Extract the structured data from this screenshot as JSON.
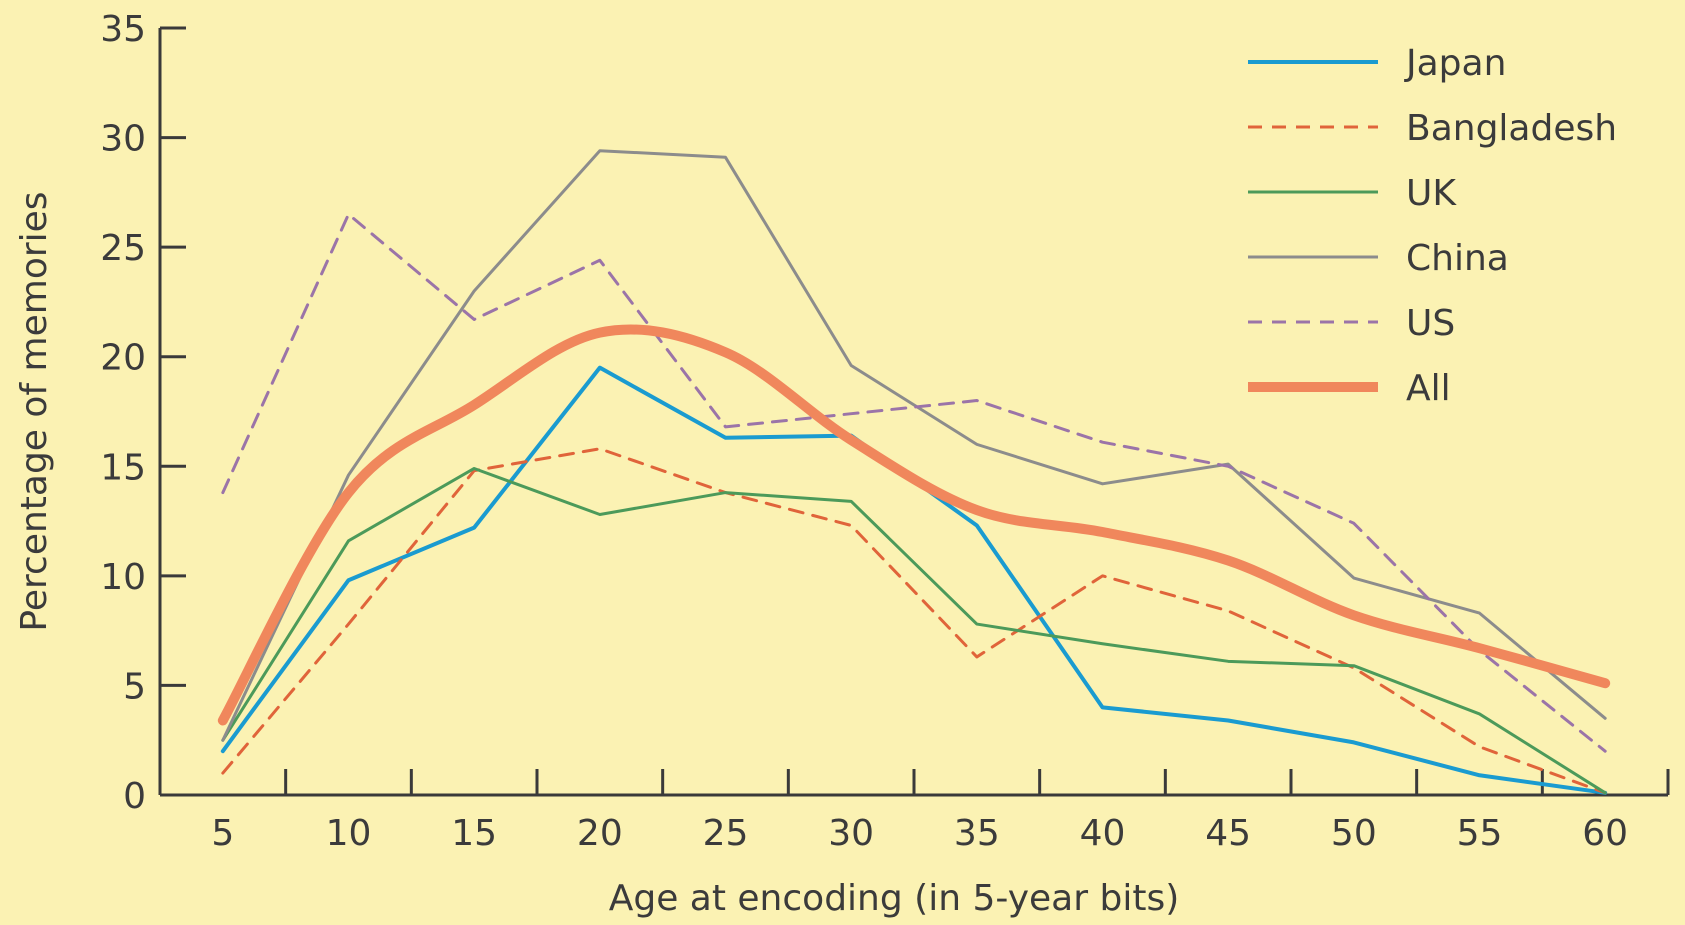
{
  "chart_data": {
    "type": "line",
    "xlabel": "Age at encoding (in 5-year bits)",
    "ylabel": "Percentage of memories",
    "x": [
      5,
      10,
      15,
      20,
      25,
      30,
      35,
      40,
      45,
      50,
      55,
      60
    ],
    "xlim": [
      2.5,
      62.5
    ],
    "ylim": [
      0,
      35
    ],
    "xticks": [
      5,
      10,
      15,
      20,
      25,
      30,
      35,
      40,
      45,
      50,
      55,
      60
    ],
    "yticks": [
      0,
      5,
      10,
      15,
      20,
      25,
      30,
      35
    ],
    "grid": false,
    "legend_position": "top-right",
    "series": [
      {
        "name": "Japan",
        "color": "#1a9bd0",
        "style": "solid",
        "width": 4,
        "values": [
          2.0,
          9.8,
          12.2,
          19.5,
          16.3,
          16.4,
          12.3,
          4.0,
          3.4,
          2.4,
          0.9,
          0.1
        ]
      },
      {
        "name": "Bangladesh",
        "color": "#e0643a",
        "style": "dashed",
        "width": 3,
        "values": [
          1.0,
          7.8,
          14.8,
          15.8,
          13.8,
          12.3,
          6.3,
          10.0,
          8.4,
          5.8,
          2.2,
          0.1
        ]
      },
      {
        "name": "UK",
        "color": "#4c9a5a",
        "style": "solid",
        "width": 3,
        "values": [
          2.5,
          11.6,
          14.9,
          12.8,
          13.8,
          13.4,
          7.8,
          6.9,
          6.1,
          5.9,
          3.7,
          0.1
        ]
      },
      {
        "name": "China",
        "color": "#8c8c8c",
        "style": "solid",
        "width": 3,
        "values": [
          2.5,
          14.6,
          23.0,
          29.4,
          29.1,
          19.6,
          16.0,
          14.2,
          15.1,
          9.9,
          8.3,
          3.5
        ]
      },
      {
        "name": "US",
        "color": "#9b74a8",
        "style": "dashed",
        "width": 3,
        "values": [
          13.8,
          26.5,
          21.7,
          24.4,
          16.8,
          17.4,
          18.0,
          16.1,
          15.0,
          12.4,
          6.6,
          2.0
        ]
      },
      {
        "name": "All",
        "color": "#f0875c",
        "style": "solid",
        "width": 10,
        "values": [
          3.4,
          13.8,
          17.8,
          21.1,
          20.2,
          16.2,
          13.0,
          12.0,
          10.7,
          8.2,
          6.7,
          5.1
        ]
      }
    ]
  }
}
